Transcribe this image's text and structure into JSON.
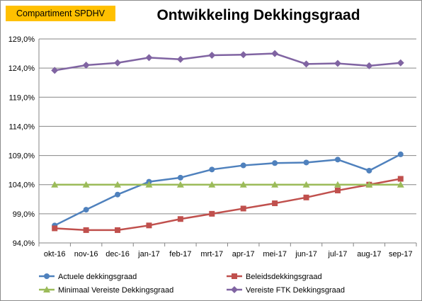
{
  "badge": "Compartiment SPDHV",
  "chart_data": {
    "type": "line",
    "title": "Ontwikkeling Dekkingsgraad",
    "categories": [
      "okt-16",
      "nov-16",
      "dec-16",
      "jan-17",
      "feb-17",
      "mrt-17",
      "apr-17",
      "mei-17",
      "jun-17",
      "jul-17",
      "aug-17",
      "sep-17"
    ],
    "y_ticks": [
      "94,0%",
      "99,0%",
      "104,0%",
      "109,0%",
      "114,0%",
      "119,0%",
      "124,0%",
      "129,0%"
    ],
    "ylim": [
      94,
      129
    ],
    "grid": true,
    "legend_position": "bottom",
    "series": [
      {
        "name": "Actuele dekkingsgraad",
        "color": "#4f81bd",
        "marker": "circle",
        "values": [
          97.0,
          99.7,
          102.3,
          104.5,
          105.2,
          106.6,
          107.3,
          107.7,
          107.8,
          108.3,
          106.4,
          109.2
        ]
      },
      {
        "name": "Beleidsdekkingsgraad",
        "color": "#c0504d",
        "marker": "square",
        "values": [
          96.5,
          96.2,
          96.2,
          97.0,
          98.1,
          99.0,
          99.9,
          100.8,
          101.8,
          103.0,
          104.0,
          105.0
        ]
      },
      {
        "name": "Minimaal Vereiste Dekkingsgraad",
        "color": "#9bbb59",
        "marker": "triangle",
        "values": [
          104.0,
          104.0,
          104.0,
          104.0,
          104.0,
          104.0,
          104.0,
          104.0,
          104.0,
          104.0,
          104.0,
          104.0
        ]
      },
      {
        "name": "Vereiste FTK Dekkingsgraad",
        "color": "#8064a2",
        "marker": "diamond",
        "values": [
          123.6,
          124.5,
          124.9,
          125.8,
          125.5,
          126.2,
          126.3,
          126.5,
          124.7,
          124.8,
          124.4,
          124.9
        ]
      }
    ]
  }
}
